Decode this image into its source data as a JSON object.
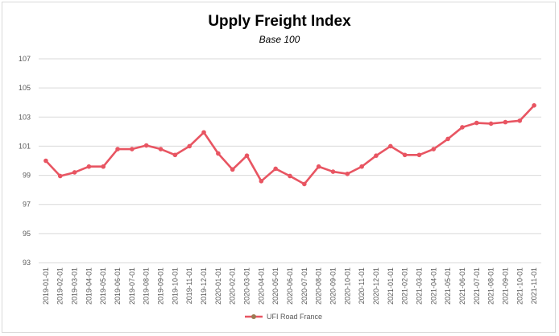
{
  "chart_data": {
    "type": "line",
    "title": "Upply Freight Index",
    "subtitle": "Base 100",
    "xlabel": "",
    "ylabel": "",
    "ylim": [
      93,
      107
    ],
    "yticks": [
      93,
      95,
      97,
      99,
      101,
      103,
      105,
      107
    ],
    "grid": true,
    "legend_position": "bottom",
    "categories": [
      "2019-01-01",
      "2019-02-01",
      "2019-03-01",
      "2019-04-01",
      "2019-05-01",
      "2019-06-01",
      "2019-07-01",
      "2019-08-01",
      "2019-09-01",
      "2019-10-01",
      "2019-11-01",
      "2019-12-01",
      "2020-01-01",
      "2020-02-01",
      "2020-03-01",
      "2020-04-01",
      "2020-05-01",
      "2020-06-01",
      "2020-07-01",
      "2020-08-01",
      "2020-09-01",
      "2020-10-01",
      "2020-11-01",
      "2020-12-01",
      "2021-01-01",
      "2021-02-01",
      "2021-03-01",
      "2021-04-01",
      "2021-05-01",
      "2021-06-01",
      "2021-07-01",
      "2021-08-01",
      "2021-09-01",
      "2021-10-01",
      "2021-11-01"
    ],
    "series": [
      {
        "name": "UFI Road France",
        "color": "#e85562",
        "values": [
          100.0,
          98.95,
          99.2,
          99.6,
          99.6,
          100.8,
          100.8,
          101.05,
          100.8,
          100.4,
          101.0,
          101.95,
          100.5,
          99.4,
          100.35,
          98.6,
          99.45,
          98.95,
          98.4,
          99.6,
          99.25,
          99.1,
          99.6,
          100.35,
          101.0,
          100.4,
          100.4,
          100.8,
          101.5,
          102.3,
          102.6,
          102.55,
          102.65,
          102.75,
          103.8
        ]
      }
    ]
  }
}
